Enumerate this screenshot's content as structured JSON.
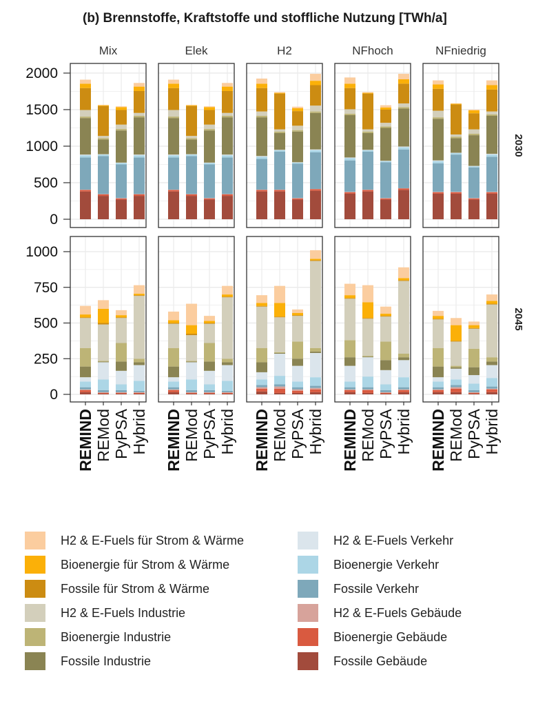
{
  "title": "(b) Brennstoffe, Kraftstoffe und stoffliche Nutzung [TWh/a]",
  "chart_data": {
    "type": "bar",
    "stacked": true,
    "facet_columns": [
      "Mix",
      "Elek",
      "H2",
      "NFhoch",
      "NFniedrig"
    ],
    "facet_rows": [
      "2030",
      "2045"
    ],
    "categories": [
      "REMIND",
      "REMod",
      "PyPSA",
      "Hybrid"
    ],
    "row_axes": [
      {
        "year": "2030",
        "ylim": [
          0,
          2050
        ],
        "ticks": [
          0,
          500,
          1000,
          1500,
          2000
        ]
      },
      {
        "year": "2045",
        "ylim": [
          0,
          1050
        ],
        "ticks": [
          0,
          250,
          500,
          750,
          1000
        ]
      }
    ],
    "grid": true,
    "legend_position": "bottom",
    "series": [
      {
        "name": "Fossile Gebäude",
        "color": "#a24b3c"
      },
      {
        "name": "Bioenergie Gebäude",
        "color": "#d95a40"
      },
      {
        "name": "H2 & E-Fuels Gebäude",
        "color": "#d7a39b"
      },
      {
        "name": "Fossile Verkehr",
        "color": "#7ea8ba"
      },
      {
        "name": "Bioenergie Verkehr",
        "color": "#acd6e6"
      },
      {
        "name": "H2 & E-Fuels Verkehr",
        "color": "#dbe5ec"
      },
      {
        "name": "Fossile Industrie",
        "color": "#8a8453"
      },
      {
        "name": "Bioenergie Industrie",
        "color": "#bdb476"
      },
      {
        "name": "H2 & E-Fuels Industrie",
        "color": "#d3cfbb"
      },
      {
        "name": "Fossile für Strom & Wärme",
        "color": "#cc8c12"
      },
      {
        "name": "Bioenergie für Strom & Wärme",
        "color": "#fbb008"
      },
      {
        "name": "H2 & E-Fuels für Strom & Wärme",
        "color": "#fbcd9f"
      }
    ],
    "values": {
      "2030": {
        "Mix": [
          [
            380,
            20,
            5,
            440,
            30,
            10,
            500,
            20,
            90,
            300,
            60,
            55
          ],
          [
            320,
            20,
            5,
            520,
            20,
            5,
            200,
            20,
            30,
            410,
            10,
            5
          ],
          [
            270,
            15,
            5,
            460,
            20,
            5,
            440,
            20,
            60,
            200,
            40,
            10
          ],
          [
            320,
            20,
            5,
            500,
            30,
            10,
            510,
            20,
            40,
            300,
            60,
            50
          ]
        ],
        "Elek": [
          [
            380,
            20,
            5,
            440,
            30,
            10,
            500,
            20,
            90,
            300,
            60,
            55
          ],
          [
            320,
            20,
            5,
            520,
            20,
            5,
            200,
            20,
            30,
            410,
            10,
            5
          ],
          [
            270,
            15,
            5,
            460,
            20,
            5,
            440,
            20,
            60,
            200,
            40,
            10
          ],
          [
            320,
            20,
            5,
            500,
            30,
            10,
            510,
            20,
            40,
            300,
            60,
            50
          ]
        ],
        "H2": [
          [
            380,
            20,
            5,
            420,
            30,
            10,
            530,
            20,
            60,
            320,
            60,
            70
          ],
          [
            380,
            20,
            5,
            520,
            20,
            5,
            230,
            20,
            30,
            490,
            10,
            10
          ],
          [
            270,
            15,
            5,
            470,
            15,
            5,
            420,
            20,
            60,
            200,
            40,
            20
          ],
          [
            390,
            20,
            5,
            500,
            30,
            10,
            500,
            20,
            80,
            280,
            60,
            95
          ]
        ],
        "NFhoch": [
          [
            350,
            20,
            5,
            430,
            30,
            10,
            580,
            20,
            60,
            290,
            60,
            85
          ],
          [
            380,
            20,
            5,
            520,
            20,
            5,
            230,
            20,
            30,
            490,
            10,
            10
          ],
          [
            270,
            15,
            5,
            490,
            15,
            5,
            450,
            20,
            50,
            180,
            30,
            30
          ],
          [
            400,
            20,
            5,
            530,
            30,
            10,
            520,
            20,
            50,
            270,
            60,
            75
          ]
        ],
        "NFniedrig": [
          [
            350,
            20,
            5,
            390,
            30,
            10,
            570,
            20,
            90,
            300,
            60,
            55
          ],
          [
            350,
            20,
            5,
            510,
            20,
            5,
            200,
            20,
            30,
            410,
            10,
            5
          ],
          [
            270,
            15,
            5,
            420,
            15,
            5,
            420,
            20,
            60,
            220,
            40,
            10
          ],
          [
            350,
            20,
            5,
            480,
            30,
            10,
            520,
            20,
            40,
            300,
            60,
            65
          ]
        ]
      },
      "2045": {
        "Mix": [
          [
            15,
            15,
            5,
            15,
            40,
            30,
            75,
            130,
            210,
            5,
            20,
            60
          ],
          [
            5,
            5,
            5,
            15,
            75,
            120,
            5,
            5,
            255,
            10,
            100,
            60
          ],
          [
            5,
            5,
            5,
            15,
            40,
            95,
            65,
            130,
            175,
            5,
            15,
            35
          ],
          [
            5,
            5,
            5,
            10,
            70,
            110,
            20,
            25,
            440,
            5,
            10,
            60
          ]
        ],
        "Elek": [
          [
            15,
            15,
            5,
            15,
            40,
            30,
            75,
            130,
            170,
            5,
            20,
            60
          ],
          [
            5,
            5,
            5,
            15,
            75,
            120,
            5,
            5,
            180,
            10,
            60,
            150
          ],
          [
            5,
            5,
            5,
            15,
            40,
            95,
            65,
            130,
            135,
            5,
            15,
            35
          ],
          [
            5,
            5,
            5,
            10,
            70,
            110,
            20,
            25,
            430,
            5,
            15,
            60
          ]
        ],
        "H2": [
          [
            20,
            20,
            10,
            15,
            40,
            50,
            70,
            100,
            290,
            5,
            20,
            55
          ],
          [
            10,
            30,
            15,
            15,
            60,
            155,
            5,
            5,
            245,
            5,
            95,
            120
          ],
          [
            10,
            15,
            10,
            15,
            40,
            110,
            50,
            120,
            180,
            5,
            15,
            25
          ],
          [
            15,
            20,
            10,
            15,
            60,
            170,
            10,
            25,
            610,
            5,
            10,
            60
          ]
        ],
        "NFhoch": [
          [
            15,
            15,
            5,
            15,
            40,
            110,
            60,
            120,
            290,
            5,
            20,
            80
          ],
          [
            10,
            20,
            5,
            15,
            75,
            135,
            5,
            5,
            260,
            5,
            110,
            120
          ],
          [
            5,
            5,
            5,
            15,
            40,
            100,
            70,
            130,
            175,
            5,
            15,
            50
          ],
          [
            15,
            15,
            5,
            15,
            70,
            120,
            20,
            25,
            510,
            5,
            15,
            75
          ]
        ],
        "NFniedrig": [
          [
            15,
            15,
            5,
            15,
            40,
            30,
            75,
            130,
            200,
            5,
            20,
            35
          ],
          [
            15,
            25,
            10,
            15,
            40,
            75,
            10,
            10,
            170,
            5,
            110,
            50
          ],
          [
            5,
            5,
            5,
            15,
            45,
            60,
            55,
            130,
            140,
            5,
            20,
            25
          ],
          [
            15,
            20,
            5,
            15,
            60,
            90,
            25,
            30,
            370,
            5,
            20,
            45
          ]
        ]
      }
    }
  },
  "legend": {
    "left": [
      {
        "label": "H2 & E-Fuels für Strom & Wärme",
        "color": "#fbcd9f"
      },
      {
        "label": "Bioenergie für Strom & Wärme",
        "color": "#fbb008"
      },
      {
        "label": "Fossile für Strom & Wärme",
        "color": "#cc8c12"
      },
      {
        "label": "H2 & E-Fuels Industrie",
        "color": "#d3cfbb"
      },
      {
        "label": "Bioenergie Industrie",
        "color": "#bdb476"
      },
      {
        "label": "Fossile Industrie",
        "color": "#8a8453"
      }
    ],
    "right": [
      {
        "label": "H2 & E-Fuels Verkehr",
        "color": "#dbe5ec"
      },
      {
        "label": "Bioenergie Verkehr",
        "color": "#acd6e6"
      },
      {
        "label": "Fossile Verkehr",
        "color": "#7ea8ba"
      },
      {
        "label": "H2 & E-Fuels Gebäude",
        "color": "#d7a39b"
      },
      {
        "label": "Bioenergie Gebäude",
        "color": "#d95a40"
      },
      {
        "label": "Fossile Gebäude",
        "color": "#a24b3c"
      }
    ]
  }
}
